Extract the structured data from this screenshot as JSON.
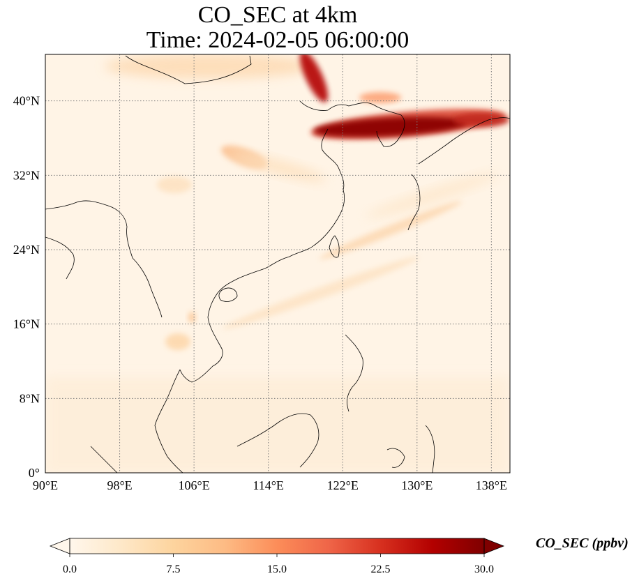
{
  "title": {
    "line1": "CO_SEC at 4km",
    "line2": "Time: 2024-02-05 06:00:00"
  },
  "map": {
    "lon_range": [
      90,
      140
    ],
    "lat_range": [
      0,
      45
    ],
    "lon_ticks": [
      {
        "value": 90,
        "label": "90°E"
      },
      {
        "value": 98,
        "label": "98°E"
      },
      {
        "value": 106,
        "label": "106°E"
      },
      {
        "value": 114,
        "label": "114°E"
      },
      {
        "value": 122,
        "label": "122°E"
      },
      {
        "value": 130,
        "label": "130°E"
      },
      {
        "value": 138,
        "label": "138°E"
      }
    ],
    "lat_ticks": [
      {
        "value": 0,
        "label": "0°"
      },
      {
        "value": 8,
        "label": "8°N"
      },
      {
        "value": 16,
        "label": "16°N"
      },
      {
        "value": 24,
        "label": "24°N"
      },
      {
        "value": 32,
        "label": "32°N"
      },
      {
        "value": 40,
        "label": "40°N"
      }
    ],
    "gridlines": true
  },
  "colorbar": {
    "label": "CO_SEC (ppbv)",
    "min": 0,
    "max": 30,
    "ticks": [
      {
        "value": 0,
        "label": "0.0"
      },
      {
        "value": 7.5,
        "label": "7.5"
      },
      {
        "value": 15,
        "label": "15.0"
      },
      {
        "value": 22.5,
        "label": "22.5"
      },
      {
        "value": 30,
        "label": "30.0"
      }
    ],
    "colormap": [
      "#fff7ec",
      "#fee8c8",
      "#fdd49e",
      "#fdbb84",
      "#fc8d59",
      "#ef6548",
      "#d7301f",
      "#b30000",
      "#7f0000"
    ],
    "extend": "both"
  }
}
